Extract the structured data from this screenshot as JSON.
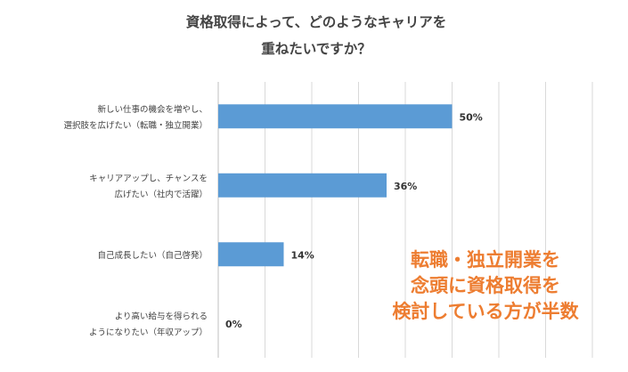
{
  "chart_data": {
    "type": "bar",
    "orientation": "horizontal",
    "title_lines": [
      "資格取得によって、どのようなキャリアを",
      "重ねたいですか？"
    ],
    "categories": [
      [
        "新しい仕事の機会を増やし、",
        "選択肢を広げたい（転職・独立開業）"
      ],
      [
        "キャリアアップし、チャンスを",
        "広げたい（社内で活躍）"
      ],
      [
        "自己成長したい（自己啓発）"
      ],
      [
        "より高い給与を得られる",
        "ようになりたい（年収アップ）"
      ]
    ],
    "values": [
      50,
      36,
      14,
      0
    ],
    "data_labels": [
      "50%",
      "36%",
      "14%",
      "0%"
    ],
    "xlim": [
      0,
      80
    ],
    "grid": true,
    "bar_color": "#5b9bd5"
  },
  "highlight": {
    "lines": [
      "転職・独立開業を",
      "念頭に資格取得を",
      "検討している方が半数"
    ],
    "color": "#ed7d31"
  }
}
